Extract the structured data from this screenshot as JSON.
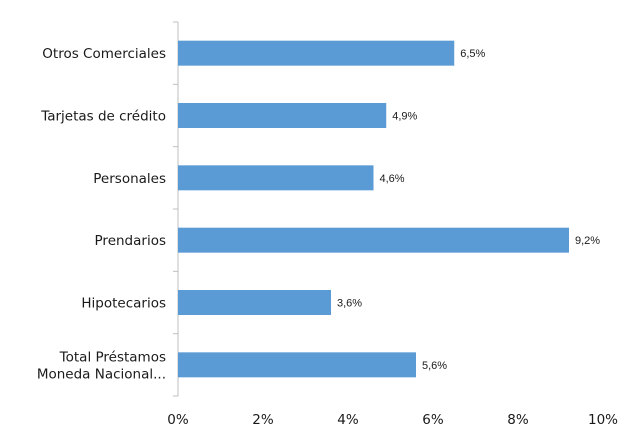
{
  "chart_data": {
    "type": "bar",
    "orientation": "horizontal",
    "categories": [
      [
        "Otros Comerciales"
      ],
      [
        "Tarjetas de crédito"
      ],
      [
        "Personales"
      ],
      [
        "Prendarios"
      ],
      [
        "Hipotecarios"
      ],
      [
        "Total Préstamos",
        "Moneda Nacional..."
      ]
    ],
    "values": [
      6.5,
      4.9,
      4.6,
      9.2,
      3.6,
      5.6
    ],
    "data_labels": [
      "6,5%",
      "4,9%",
      "4,6%",
      "9,2%",
      "3,6%",
      "5,6%"
    ],
    "x_ticks": [
      "0%",
      "2%",
      "4%",
      "6%",
      "8%",
      "10%"
    ],
    "xlim": [
      0,
      10
    ],
    "grid": false,
    "legend": "none",
    "bar_color": "#5b9bd5",
    "title": "",
    "xlabel": "",
    "ylabel": ""
  }
}
